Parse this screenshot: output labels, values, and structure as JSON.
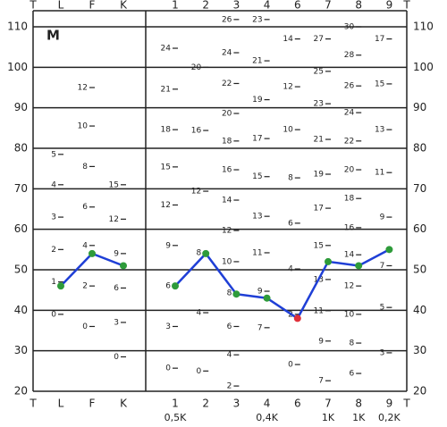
{
  "chart_data": {
    "type": "line",
    "panel_label": "M",
    "edge_label": "T",
    "categories": [
      "L",
      "F",
      "K",
      "1",
      "2",
      "3",
      "4",
      "6",
      "7",
      "8",
      "9"
    ],
    "x_sublabels": [
      null,
      null,
      null,
      "0,5K",
      null,
      null,
      "0,4K",
      null,
      "1K",
      "1K",
      "0,2K"
    ],
    "series": [
      {
        "color": "#1f3fd6",
        "marker_colors": [
          "#2e9b3a",
          "#2e9b3a",
          "#2e9b3a",
          null,
          null,
          null,
          null,
          null,
          null,
          null,
          null
        ],
        "values": [
          46,
          54,
          51,
          null,
          null,
          null,
          null,
          null,
          null,
          null,
          null
        ]
      },
      {
        "color": "#1f3fd6",
        "marker_colors": [
          null,
          null,
          null,
          "#2e9b3a",
          "#2e9b3a",
          "#2e9b3a",
          "#2e9b3a",
          "#e0303a",
          "#2e9b3a",
          "#2e9b3a",
          "#2e9b3a"
        ],
        "values": [
          null,
          null,
          null,
          46,
          54,
          44,
          43,
          38,
          52,
          51,
          55
        ]
      }
    ],
    "ylim": [
      20,
      110
    ],
    "yticks": [
      20,
      30,
      40,
      50,
      60,
      70,
      80,
      90,
      100,
      110
    ],
    "grid": true,
    "raw_score_ticks": [
      [
        {
          "value": 78.5,
          "label": "5"
        },
        {
          "value": 71,
          "label": "4"
        },
        {
          "value": 63,
          "label": "3"
        },
        {
          "value": 55,
          "label": "2"
        },
        {
          "value": 47,
          "label": "1"
        },
        {
          "value": 39,
          "label": "0"
        }
      ],
      [
        {
          "value": 95,
          "label": "12"
        },
        {
          "value": 85.5,
          "label": "10"
        },
        {
          "value": 75.5,
          "label": "8"
        },
        {
          "value": 65.5,
          "label": "6"
        },
        {
          "value": 56,
          "label": "4"
        },
        {
          "value": 46,
          "label": "2"
        },
        {
          "value": 36,
          "label": "0"
        }
      ],
      [
        {
          "value": 71,
          "label": "15"
        },
        {
          "value": 62.5,
          "label": "12"
        },
        {
          "value": 54,
          "label": "9"
        },
        {
          "value": 45.5,
          "label": "6"
        },
        {
          "value": 37,
          "label": "3"
        },
        {
          "value": 28.5,
          "label": "0"
        }
      ],
      [
        {
          "value": 104.7,
          "label": "24"
        },
        {
          "value": 94.6,
          "label": "21"
        },
        {
          "value": 84.6,
          "label": "18"
        },
        {
          "value": 75.4,
          "label": "15"
        },
        {
          "value": 66,
          "label": "12"
        },
        {
          "value": 56,
          "label": "9"
        },
        {
          "value": 46,
          "label": "6"
        },
        {
          "value": 36,
          "label": "3"
        },
        {
          "value": 25.7,
          "label": "0"
        }
      ],
      [
        {
          "value": 100,
          "label": "20"
        },
        {
          "value": 84.4,
          "label": "16"
        },
        {
          "value": 69.4,
          "label": "12"
        },
        {
          "value": 54.2,
          "label": "8"
        },
        {
          "value": 39.4,
          "label": "4"
        },
        {
          "value": 25,
          "label": "0"
        }
      ],
      [
        {
          "value": 111.8,
          "label": "26"
        },
        {
          "value": 103.6,
          "label": "24"
        },
        {
          "value": 96,
          "label": "22"
        },
        {
          "value": 88.6,
          "label": "20"
        },
        {
          "value": 81.8,
          "label": "18"
        },
        {
          "value": 74.7,
          "label": "16"
        },
        {
          "value": 67.2,
          "label": "14"
        },
        {
          "value": 59.7,
          "label": "12"
        },
        {
          "value": 52,
          "label": "10"
        },
        {
          "value": 44.3,
          "label": "8"
        },
        {
          "value": 36,
          "label": "6"
        },
        {
          "value": 29,
          "label": "4"
        },
        {
          "value": 21.3,
          "label": "2"
        }
      ],
      [
        {
          "value": 111.8,
          "label": "23"
        },
        {
          "value": 101.6,
          "label": "21"
        },
        {
          "value": 92,
          "label": "19"
        },
        {
          "value": 82.4,
          "label": "17"
        },
        {
          "value": 73,
          "label": "15"
        },
        {
          "value": 63.2,
          "label": "13"
        },
        {
          "value": 54.2,
          "label": "11"
        },
        {
          "value": 44.7,
          "label": "9"
        },
        {
          "value": 35.7,
          "label": "7"
        }
      ],
      [
        {
          "value": 107,
          "label": "14"
        },
        {
          "value": 95.2,
          "label": "12"
        },
        {
          "value": 84.6,
          "label": "10"
        },
        {
          "value": 72.7,
          "label": "8"
        },
        {
          "value": 61.5,
          "label": "6"
        },
        {
          "value": 50.2,
          "label": "4"
        },
        {
          "value": 39,
          "label": "2"
        },
        {
          "value": 26.6,
          "label": "0"
        }
      ],
      [
        {
          "value": 107,
          "label": "27"
        },
        {
          "value": 99,
          "label": "25"
        },
        {
          "value": 91,
          "label": "23"
        },
        {
          "value": 82.2,
          "label": "21"
        },
        {
          "value": 73.6,
          "label": "19"
        },
        {
          "value": 65.2,
          "label": "17"
        },
        {
          "value": 56,
          "label": "15"
        },
        {
          "value": 47.6,
          "label": "13"
        },
        {
          "value": 39.9,
          "label": "11"
        },
        {
          "value": 32.4,
          "label": "9"
        },
        {
          "value": 22.6,
          "label": "7"
        }
      ],
      [
        {
          "value": 110,
          "label": "30"
        },
        {
          "value": 103,
          "label": "28"
        },
        {
          "value": 95.4,
          "label": "26"
        },
        {
          "value": 88.8,
          "label": "24"
        },
        {
          "value": 81.8,
          "label": "22"
        },
        {
          "value": 74.7,
          "label": "20"
        },
        {
          "value": 67.6,
          "label": "18"
        },
        {
          "value": 60.4,
          "label": "16"
        },
        {
          "value": 53.7,
          "label": "14"
        },
        {
          "value": 46,
          "label": "12"
        },
        {
          "value": 39,
          "label": "10"
        },
        {
          "value": 31.9,
          "label": "8"
        },
        {
          "value": 24.4,
          "label": "6"
        }
      ],
      [
        {
          "value": 107,
          "label": "17"
        },
        {
          "value": 95.9,
          "label": "15"
        },
        {
          "value": 84.6,
          "label": "13"
        },
        {
          "value": 74,
          "label": "11"
        },
        {
          "value": 63,
          "label": "9"
        },
        {
          "value": 51,
          "label": "7"
        },
        {
          "value": 40.7,
          "label": "5"
        },
        {
          "value": 29.5,
          "label": "3"
        }
      ]
    ]
  }
}
